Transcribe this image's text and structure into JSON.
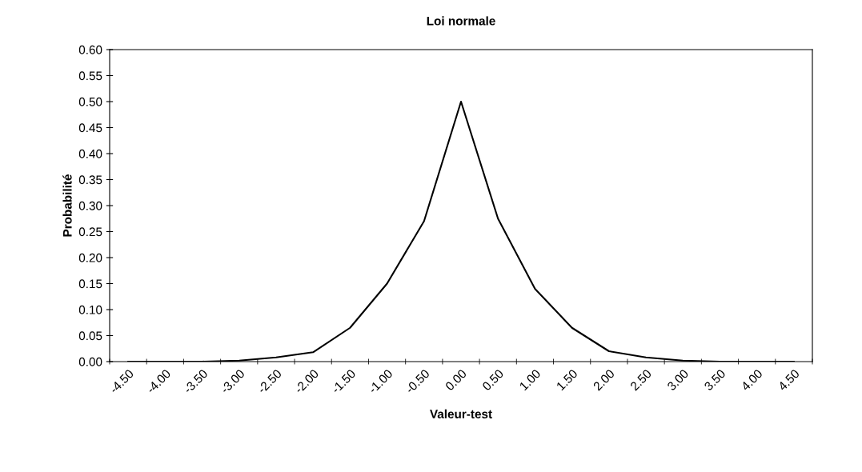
{
  "chart_data": {
    "type": "line",
    "title": "Loi normale",
    "xlabel": "Valeur-test",
    "ylabel": "Probabilité",
    "categories": [
      "-4.50",
      "-4.00",
      "-3.50",
      "-3.00",
      "-2.50",
      "-2.00",
      "-1.50",
      "-1.00",
      "-0.50",
      "0.00",
      "0.50",
      "1.00",
      "1.50",
      "2.00",
      "2.50",
      "3.00",
      "3.50",
      "4.00",
      "4.50"
    ],
    "series": [
      {
        "color": "#000000",
        "values": [
          0.0,
          0.0,
          0.0,
          0.002,
          0.008,
          0.018,
          0.065,
          0.15,
          0.27,
          0.5,
          0.275,
          0.14,
          0.065,
          0.02,
          0.008,
          0.002,
          0.0,
          0.0,
          0.0
        ]
      }
    ],
    "ylim": [
      0,
      0.6
    ],
    "yticks": [
      {
        "value": 0,
        "label": "0.00"
      },
      {
        "value": 0.05,
        "label": "0.05"
      },
      {
        "value": 0.1,
        "label": "0.10"
      },
      {
        "value": 0.15,
        "label": "0.15"
      },
      {
        "value": 0.2,
        "label": "0.20"
      },
      {
        "value": 0.25,
        "label": "0.25"
      },
      {
        "value": 0.3,
        "label": "0.30"
      },
      {
        "value": 0.35,
        "label": "0.35"
      },
      {
        "value": 0.4,
        "label": "0.40"
      },
      {
        "value": 0.45,
        "label": "0.45"
      },
      {
        "value": 0.5,
        "label": "0.50"
      },
      {
        "value": 0.55,
        "label": "0.55"
      },
      {
        "value": 0.6,
        "label": "0.60"
      }
    ],
    "grid": false,
    "marker": "none",
    "line_style": "solid"
  }
}
